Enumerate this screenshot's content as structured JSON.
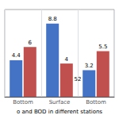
{
  "chart_data": {
    "type": "bar",
    "title": "o and BOD in different stations",
    "annotations": [
      "52"
    ],
    "categories": [
      "Bottom",
      "Surface",
      "Bottom"
    ],
    "series": [
      {
        "color": "#4472C4",
        "values": [
          4.4,
          8.8,
          3.2
        ]
      },
      {
        "color": "#C0504D",
        "values": [
          6,
          4,
          5.5
        ]
      }
    ],
    "ylim": [
      0,
      10.5
    ],
    "data_labels": true,
    "tick_labels": "x",
    "grid": false
  }
}
